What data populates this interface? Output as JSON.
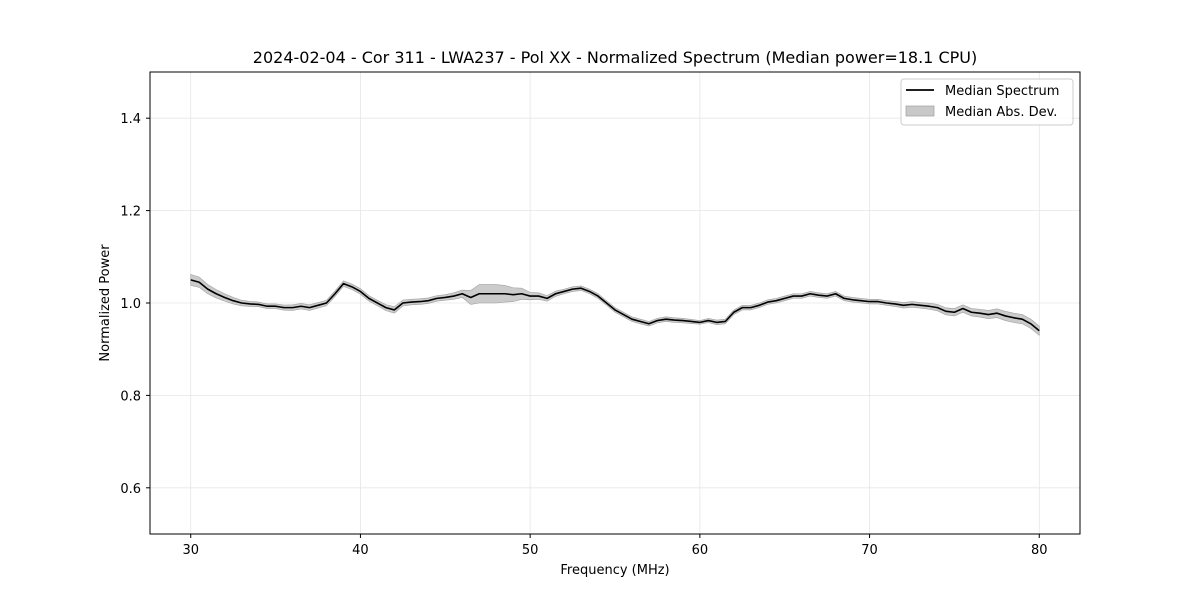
{
  "chart_data": {
    "type": "line",
    "title": "2024-02-04 - Cor 311 - LWA237 - Pol XX - Normalized Spectrum (Median power=18.1 CPU)",
    "xlabel": "Frequency (MHz)",
    "ylabel": "Normalized Power",
    "xlim": [
      27.6,
      82.4
    ],
    "ylim": [
      0.5,
      1.5
    ],
    "xticks": [
      30,
      40,
      50,
      60,
      70,
      80
    ],
    "yticks": [
      0.6,
      0.8,
      1.0,
      1.2,
      1.4
    ],
    "xtick_labels": [
      "30",
      "40",
      "50",
      "60",
      "70",
      "80"
    ],
    "ytick_labels": [
      "0.6",
      "0.8",
      "1.0",
      "1.2",
      "1.4"
    ],
    "grid": true,
    "legend_position": "top-right",
    "series": [
      {
        "name": "Median Spectrum",
        "kind": "line",
        "color": "#000000",
        "x": [
          30,
          30.5,
          31,
          31.5,
          32,
          32.5,
          33,
          33.5,
          34,
          34.5,
          35,
          35.5,
          36,
          36.5,
          37,
          37.5,
          38,
          38.5,
          39,
          39.5,
          40,
          40.5,
          41,
          41.5,
          42,
          42.5,
          43,
          43.5,
          44,
          44.5,
          45,
          45.5,
          46,
          46.5,
          47,
          47.5,
          48,
          48.5,
          49,
          49.5,
          50,
          50.5,
          51,
          51.5,
          52,
          52.5,
          53,
          53.5,
          54,
          54.5,
          55,
          55.5,
          56,
          56.5,
          57,
          57.5,
          58,
          58.5,
          59,
          59.5,
          60,
          60.5,
          61,
          61.5,
          62,
          62.5,
          63,
          63.5,
          64,
          64.5,
          65,
          65.5,
          66,
          66.5,
          67,
          67.5,
          68,
          68.5,
          69,
          69.5,
          70,
          70.5,
          71,
          71.5,
          72,
          72.5,
          73,
          73.5,
          74,
          74.5,
          75,
          75.5,
          76,
          76.5,
          77,
          77.5,
          78,
          78.5,
          79,
          79.5,
          80
        ],
        "values": [
          1.05,
          1.045,
          1.03,
          1.02,
          1.012,
          1.005,
          1.0,
          0.998,
          0.997,
          0.993,
          0.993,
          0.99,
          0.99,
          0.993,
          0.99,
          0.995,
          1.0,
          1.02,
          1.042,
          1.035,
          1.025,
          1.01,
          1.0,
          0.99,
          0.985,
          1.0,
          1.002,
          1.003,
          1.005,
          1.01,
          1.012,
          1.015,
          1.02,
          1.012,
          1.02,
          1.02,
          1.02,
          1.02,
          1.018,
          1.02,
          1.015,
          1.015,
          1.01,
          1.02,
          1.025,
          1.03,
          1.032,
          1.025,
          1.015,
          1.0,
          0.985,
          0.975,
          0.965,
          0.96,
          0.955,
          0.962,
          0.965,
          0.963,
          0.962,
          0.96,
          0.958,
          0.962,
          0.958,
          0.96,
          0.98,
          0.99,
          0.99,
          0.995,
          1.002,
          1.005,
          1.01,
          1.015,
          1.015,
          1.02,
          1.017,
          1.015,
          1.02,
          1.01,
          1.007,
          1.005,
          1.003,
          1.003,
          1.0,
          0.998,
          0.995,
          0.997,
          0.995,
          0.993,
          0.99,
          0.982,
          0.98,
          0.988,
          0.98,
          0.978,
          0.975,
          0.978,
          0.972,
          0.968,
          0.965,
          0.955,
          0.94
        ]
      },
      {
        "name": "Median Abs. Dev.",
        "kind": "band",
        "color": "#c8c8c8",
        "x": [
          30,
          31,
          32,
          33,
          34,
          35,
          36,
          37,
          38,
          39,
          40,
          41,
          42,
          43,
          44,
          45,
          46,
          46.5,
          47,
          47.5,
          48,
          48.5,
          49,
          49.5,
          50,
          51,
          52,
          53,
          54,
          55,
          56,
          57,
          58,
          59,
          60,
          61,
          62,
          63,
          64,
          65,
          66,
          67,
          68,
          69,
          70,
          71,
          72,
          73,
          74,
          75,
          76,
          77,
          78,
          79,
          80
        ],
        "halfwidth": [
          0.012,
          0.01,
          0.008,
          0.006,
          0.005,
          0.005,
          0.006,
          0.006,
          0.006,
          0.006,
          0.006,
          0.006,
          0.007,
          0.006,
          0.006,
          0.006,
          0.008,
          0.015,
          0.02,
          0.02,
          0.02,
          0.018,
          0.015,
          0.012,
          0.008,
          0.006,
          0.005,
          0.005,
          0.005,
          0.005,
          0.005,
          0.005,
          0.005,
          0.005,
          0.004,
          0.005,
          0.005,
          0.005,
          0.005,
          0.005,
          0.005,
          0.005,
          0.005,
          0.005,
          0.005,
          0.005,
          0.006,
          0.006,
          0.007,
          0.008,
          0.008,
          0.009,
          0.01,
          0.01,
          0.01
        ]
      }
    ]
  }
}
